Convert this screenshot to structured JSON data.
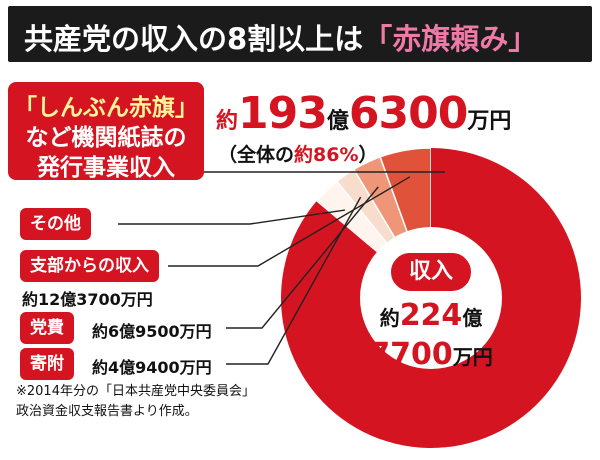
{
  "title": {
    "main": "共産党の収入の8割以上は",
    "accent": "「赤旗頼み」"
  },
  "headline_box": {
    "line1": "「しんぶん赤旗」",
    "line2": "など機関紙誌の",
    "line3": "発行事業収入"
  },
  "headline_amount": {
    "prefix": "約",
    "oku_num": "193",
    "oku_unit": "億",
    "man_num": "6300",
    "man_unit": "万円"
  },
  "share_note": {
    "open": "（全体の",
    "value": "約86%",
    "close": "）"
  },
  "total": {
    "label": "収入",
    "line1_prefix": "約",
    "line1_num": "224",
    "line1_unit": "億",
    "line2_num": "7700",
    "line2_unit": "万円"
  },
  "legend": [
    {
      "label": "その他",
      "amount": ""
    },
    {
      "label": "支部からの収入",
      "amount": "約12億3700万円"
    },
    {
      "label": "党費",
      "amount": "約6億9500万円"
    },
    {
      "label": "寄附",
      "amount": "約4億9400万円"
    }
  ],
  "source_note": {
    "line1": "※2014年分の「日本共産党中央委員会」",
    "line2": "政治資金収支報告書より作成。"
  },
  "colors": {
    "main": "#d41420",
    "branch": "#e0533a",
    "dues": "#ef9678",
    "donation": "#f8dccc",
    "other": "#fff5ee"
  },
  "chart_data": {
    "type": "pie",
    "title": "共産党の収入の8割以上は「赤旗頼み」",
    "unit": "万円",
    "total": 2247700,
    "labels": [
      "「しんぶん赤旗」など機関紙誌の発行事業収入",
      "支部からの収入",
      "党費",
      "寄附",
      "その他"
    ],
    "values": [
      1936300,
      123700,
      69500,
      49400,
      68800
    ],
    "share_of_main_percent": 86
  }
}
